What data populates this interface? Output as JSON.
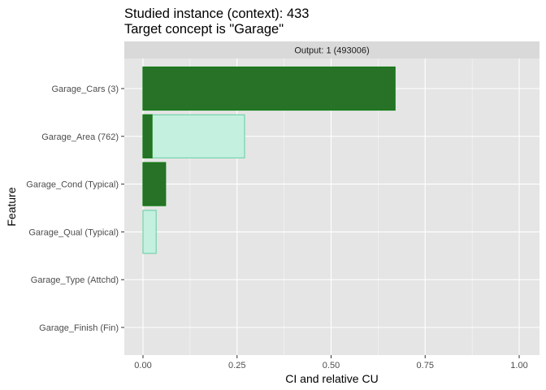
{
  "chart_data": {
    "type": "bar",
    "orientation": "horizontal",
    "title": "Studied instance (context): 433",
    "subtitle": "Target concept is \"Garage\"",
    "facet_label": "Output: 1 (493006)",
    "xlabel": "CI and relative CU",
    "ylabel": "Feature",
    "xlim": [
      0,
      1
    ],
    "x_ticks": [
      {
        "value": 0,
        "label": "0.00"
      },
      {
        "value": 0.25,
        "label": "0.25"
      },
      {
        "value": 0.5,
        "label": "0.50"
      },
      {
        "value": 0.75,
        "label": "0.75"
      },
      {
        "value": 1,
        "label": "1.00"
      }
    ],
    "grid": true,
    "categories": [
      "Garage_Cars (3)",
      "Garage_Area (762)",
      "Garage_Cond (Typical)",
      "Garage_Qual (Typical)",
      "Garage_Type (Attchd)",
      "Garage_Finish (Fin)"
    ],
    "series": [
      {
        "key": "ci",
        "values": [
          0.67,
          0.024,
          0.06,
          0.0,
          0.0,
          0.0
        ]
      },
      {
        "key": "relative_cu",
        "values": [
          0.0,
          0.27,
          0.0,
          0.035,
          0.0,
          0.0
        ]
      }
    ],
    "colors": {
      "ci_fill": "#1e6b1e",
      "ci_stroke": "#0f7a0f",
      "cu_fill": "#c4f0e0",
      "cu_stroke": "#5fcf9f",
      "panel_bg": "#e5e5e5",
      "grid_major": "#ffffff",
      "strip_bg": "#d9d9d9"
    }
  }
}
